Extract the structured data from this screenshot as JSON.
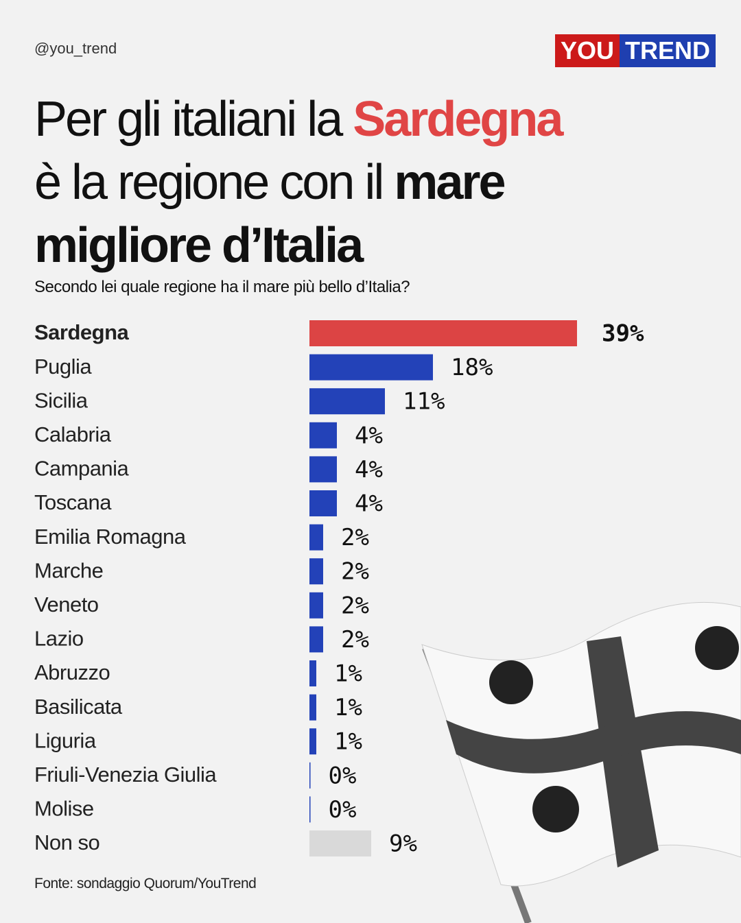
{
  "handle": "@you_trend",
  "logo": [
    "YOU",
    "TREND"
  ],
  "chart_data": {
    "type": "bar",
    "orientation": "horizontal",
    "title_parts": [
      "Per gli italiani la ",
      "Sardegna",
      " è la regione con il ",
      "mare migliore d’Italia"
    ],
    "subtitle": "Secondo lei quale regione ha il mare più bello d’Italia?",
    "categories": [
      "Sardegna",
      "Puglia",
      "Sicilia",
      "Calabria",
      "Campania",
      "Toscana",
      "Emilia Romagna",
      "Marche",
      "Veneto",
      "Lazio",
      "Abruzzo",
      "Basilicata",
      "Liguria",
      "Friuli-Venezia Giulia",
      "Molise",
      "Non so"
    ],
    "values": [
      39,
      18,
      11,
      4,
      4,
      4,
      2,
      2,
      2,
      2,
      1,
      1,
      1,
      0,
      0,
      9
    ],
    "value_labels": [
      "39%",
      "18%",
      "11%",
      "4%",
      "4%",
      "4%",
      "2%",
      "2%",
      "2%",
      "2%",
      "1%",
      "1%",
      "1%",
      "0%",
      "0%",
      "9%"
    ],
    "colors": [
      "#dc4444",
      "#2342b8",
      "#2342b8",
      "#2342b8",
      "#2342b8",
      "#2342b8",
      "#2342b8",
      "#2342b8",
      "#2342b8",
      "#2342b8",
      "#2342b8",
      "#2342b8",
      "#2342b8",
      "#2342b8",
      "#2342b8",
      "#d9d9d9"
    ],
    "source": "Fonte: sondaggio Quorum/YouTrend"
  }
}
